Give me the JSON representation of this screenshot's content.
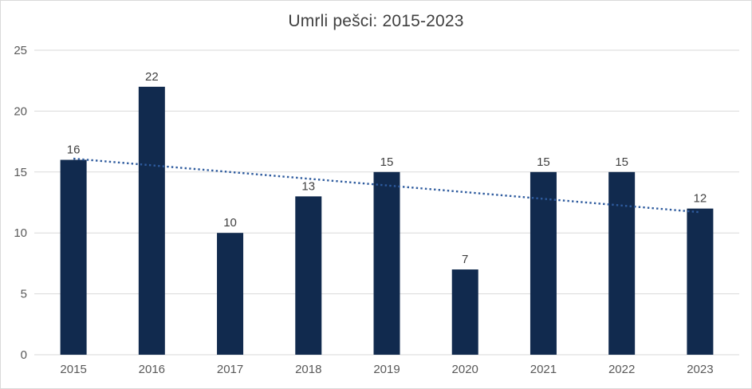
{
  "chart_data": {
    "type": "bar",
    "title": "Umrli pešci: 2015-2023",
    "categories": [
      "2015",
      "2016",
      "2017",
      "2018",
      "2019",
      "2020",
      "2021",
      "2022",
      "2023"
    ],
    "values": [
      16,
      22,
      10,
      13,
      15,
      7,
      15,
      15,
      12
    ],
    "xlabel": "",
    "ylabel": "",
    "ylim": [
      0,
      25
    ],
    "yticks": [
      0,
      5,
      10,
      15,
      20,
      25
    ],
    "grid": true,
    "legend": "none",
    "data_labels_shown": true,
    "trendline": {
      "type": "linear",
      "style": "dotted",
      "start_value": 16.1,
      "end_value": 11.7
    },
    "colors": {
      "bar": "#112a4e",
      "trendline": "#2e5b9e",
      "gridline": "#d9d9d9",
      "axis_line": "#d9d9d9",
      "tick_text": "#595959",
      "data_label_text": "#404040",
      "title_text": "#404040",
      "background": "#ffffff",
      "frame_border": "#d9d9d9"
    }
  }
}
